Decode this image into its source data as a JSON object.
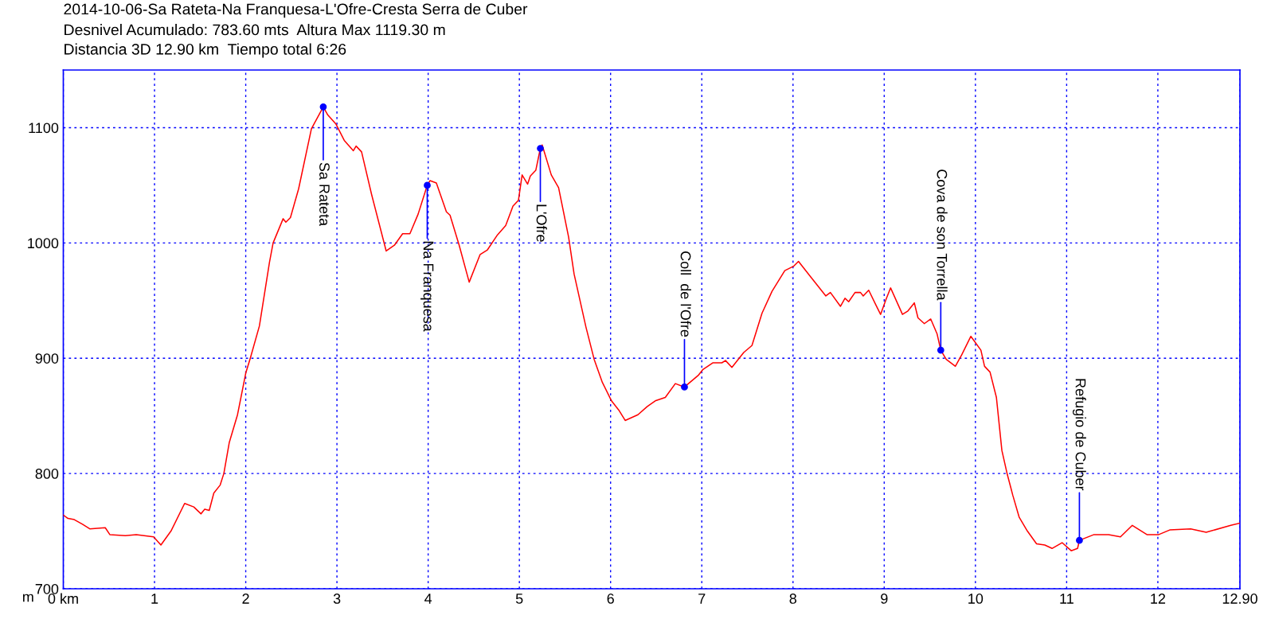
{
  "chart_data": {
    "type": "line",
    "title": "2014-10-06-Sa Rateta-Na Franquesa-L'Ofre-Cresta Serra de Cuber",
    "subtitle": "Desnivel Acumulado: 783.60 mts  Altura Max 1119.30 m\nDistancia 3D 12.90 km  Tiempo total 6:26",
    "ylabel": "m",
    "series": [
      {
        "color": "#ff0000",
        "x": [
          0.0,
          0.05,
          0.12,
          0.21,
          0.29,
          0.46,
          0.51,
          0.68,
          0.8,
          0.99,
          1.07,
          1.18,
          1.33,
          1.43,
          1.51,
          1.55,
          1.6,
          1.65,
          1.72,
          1.76,
          1.82,
          1.91,
          2.0,
          2.05,
          2.15,
          2.26,
          2.3,
          2.41,
          2.44,
          2.49,
          2.58,
          2.72,
          2.85,
          2.9,
          2.99,
          3.08,
          3.18,
          3.21,
          3.27,
          3.38,
          3.54,
          3.63,
          3.72,
          3.8,
          3.89,
          3.99,
          4.02,
          4.09,
          4.2,
          4.24,
          4.34,
          4.45,
          4.57,
          4.65,
          4.76,
          4.85,
          4.93,
          4.99,
          5.03,
          5.09,
          5.12,
          5.18,
          5.23,
          5.25,
          5.35,
          5.43,
          5.54,
          5.6,
          5.73,
          5.82,
          5.91,
          6.01,
          6.09,
          6.16,
          6.3,
          6.4,
          6.49,
          6.6,
          6.71,
          6.81,
          6.96,
          7.01,
          7.12,
          7.22,
          7.26,
          7.33,
          7.46,
          7.55,
          7.66,
          7.77,
          7.91,
          8.01,
          8.06,
          8.18,
          8.27,
          8.36,
          8.41,
          8.52,
          8.57,
          8.61,
          8.68,
          8.74,
          8.77,
          8.83,
          8.91,
          8.96,
          9.02,
          9.07,
          9.2,
          9.26,
          9.33,
          9.37,
          9.44,
          9.51,
          9.58,
          9.62,
          9.68,
          9.78,
          9.85,
          9.95,
          10.06,
          10.1,
          10.16,
          10.23,
          10.29,
          10.35,
          10.41,
          10.48,
          10.57,
          10.67,
          10.76,
          10.84,
          10.95,
          11.05,
          11.12,
          11.14,
          11.3,
          11.46,
          11.59,
          11.72,
          11.88,
          12.01,
          12.13,
          12.36,
          12.53,
          12.8,
          12.9
        ],
        "values": [
          764,
          761,
          760,
          756,
          752,
          753,
          747,
          746,
          747,
          745,
          738,
          750,
          774,
          771,
          765,
          769,
          768,
          783,
          790,
          800,
          827,
          851,
          887,
          900,
          928,
          983,
          1000,
          1021,
          1018,
          1022,
          1047,
          1099,
          1118,
          1111,
          1103,
          1089,
          1080,
          1084,
          1079,
          1042,
          993,
          998,
          1008,
          1008,
          1025,
          1050,
          1054,
          1052,
          1027,
          1024,
          998,
          966,
          990,
          994,
          1007,
          1015,
          1032,
          1037,
          1059,
          1051,
          1058,
          1063,
          1082,
          1085,
          1059,
          1048,
          1005,
          973,
          927,
          899,
          879,
          863,
          855,
          846,
          851,
          858,
          863,
          866,
          878,
          875,
          885,
          890,
          896,
          896,
          898,
          892,
          905,
          911,
          939,
          958,
          976,
          980,
          984,
          972,
          963,
          954,
          957,
          945,
          952,
          949,
          957,
          957,
          954,
          959,
          946,
          938,
          951,
          961,
          938,
          941,
          948,
          935,
          930,
          934,
          921,
          907,
          899,
          893,
          903,
          919,
          907,
          893,
          888,
          866,
          820,
          799,
          781,
          762,
          750,
          739,
          738,
          735,
          740,
          733,
          735,
          742,
          747,
          747,
          745,
          755,
          747,
          747,
          751,
          752,
          749,
          755,
          757
        ]
      },
      {
        "type": "scatter",
        "color": "#0000ff",
        "marker": "circle",
        "x": [
          2.85,
          3.99,
          5.23,
          6.81,
          9.62,
          11.14
        ],
        "values": [
          1118,
          1050,
          1082,
          875,
          907,
          742
        ]
      }
    ],
    "annotations": [
      {
        "text": "Sa Rateta",
        "x": 2.85,
        "y": 1118
      },
      {
        "text": "Na Franquesa",
        "x": 3.99,
        "y": 1050
      },
      {
        "text": "L'Ofre",
        "x": 5.23,
        "y": 1082
      },
      {
        "text": "Coll  de l'Ofre",
        "x": 6.81,
        "y": 875
      },
      {
        "text": "Cova de son Torrella",
        "x": 9.62,
        "y": 907
      },
      {
        "text": "Refugio de Cuber",
        "x": 11.14,
        "y": 742
      }
    ],
    "xlim": [
      0,
      12.9
    ],
    "ylim": [
      700,
      1150
    ],
    "xticks": [
      {
        "value": 0,
        "label": "0 km"
      },
      1,
      2,
      3,
      4,
      5,
      6,
      7,
      8,
      9,
      10,
      11,
      12,
      {
        "value": 12.9,
        "label": "12.90"
      }
    ],
    "yticks": [
      700,
      800,
      900,
      1000,
      1100
    ],
    "grid": true,
    "legend": false
  }
}
